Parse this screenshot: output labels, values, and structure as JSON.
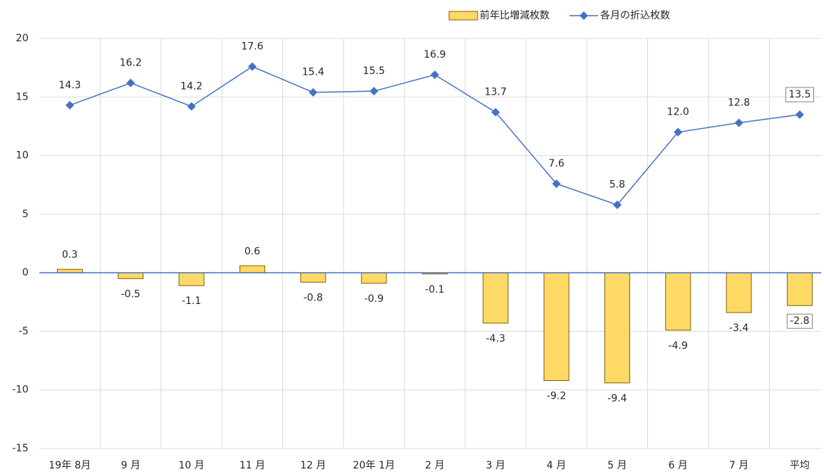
{
  "chart_data": {
    "type": "bar_line",
    "categories": [
      "19年 8月",
      "9 月",
      "10 月",
      "11 月",
      "12 月",
      "20年 1月",
      "2 月",
      "3 月",
      "4 月",
      "5 月",
      "6 月",
      "7 月",
      "平均"
    ],
    "series": [
      {
        "name": "前年比増減枚数",
        "type": "bar",
        "color": "#ffd966",
        "values": [
          0.3,
          -0.5,
          -1.1,
          0.6,
          -0.8,
          -0.9,
          -0.1,
          -4.3,
          -9.2,
          -9.4,
          -4.9,
          -3.4,
          -2.8
        ],
        "value_labels": [
          "0.3",
          "-0.5",
          "-1.1",
          "0.6",
          "-0.8",
          "-0.9",
          "-0.1",
          "-4.3",
          "-9.2",
          "-9.4",
          "-4.9",
          "-3.4",
          "-2.8"
        ]
      },
      {
        "name": "各月の折込枚数",
        "type": "line",
        "color": "#4472c4",
        "values": [
          14.3,
          16.2,
          14.2,
          17.6,
          15.4,
          15.5,
          16.9,
          13.7,
          7.6,
          5.8,
          12.0,
          12.8,
          13.5
        ],
        "value_labels": [
          "14.3",
          "16.2",
          "14.2",
          "17.6",
          "15.4",
          "15.5",
          "16.9",
          "13.7",
          "7.6",
          "5.8",
          "12.0",
          "12.8",
          "13.5"
        ]
      }
    ],
    "ylim": [
      -15,
      20
    ],
    "yticks": [
      -15,
      -10,
      -5,
      0,
      5,
      10,
      15,
      20
    ],
    "grid": true
  }
}
